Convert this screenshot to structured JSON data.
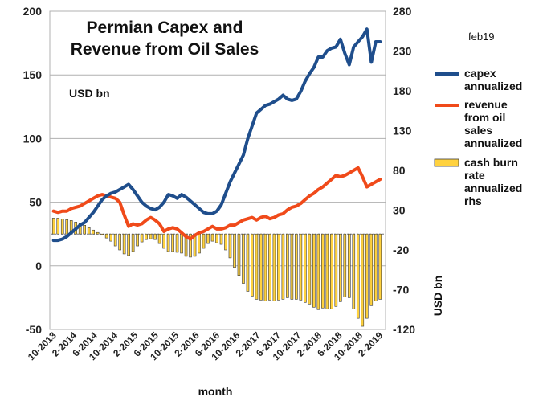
{
  "chart_data": {
    "type": "line",
    "title_line1": "Permian Capex and",
    "title_line2": "Revenue from Oil Sales",
    "unit_label": "USD bn",
    "date_label": "feb19",
    "xlabel": "month",
    "y2label": "USD bn",
    "ylim": [
      -50,
      200
    ],
    "y2lim": [
      -120,
      280
    ],
    "yticks": [
      "200",
      "150",
      "100",
      "50",
      "0",
      "-50"
    ],
    "y2ticks": [
      "280",
      "230",
      "180",
      "130",
      "80",
      "30",
      "-20",
      "-70",
      "-120"
    ],
    "x_tick_labels": [
      "10-2013",
      "2-2014",
      "6-2014",
      "10-2014",
      "2-2015",
      "6-2015",
      "10-2015",
      "2-2016",
      "6-2016",
      "10-2016",
      "2-2017",
      "6-2017",
      "10-2017",
      "2-2018",
      "6-2018",
      "10-2018",
      "2-2019"
    ],
    "colors": {
      "capex": "#1f4e8c",
      "revenue": "#f04a1a",
      "cash_burn": "#ffd23f",
      "cash_burn_edge": "#3a3a3a"
    },
    "legend_position": "right",
    "series": [
      {
        "key": "capex",
        "legend_lines": [
          "capex",
          "annualized"
        ],
        "axis": "left",
        "values": [
          20,
          20,
          21,
          23,
          26,
          29,
          32,
          34,
          38,
          42,
          47,
          52,
          55,
          57,
          58,
          60,
          62,
          64,
          60,
          55,
          50,
          47,
          45,
          44,
          46,
          50,
          56,
          55,
          53,
          56,
          54,
          51,
          48,
          45,
          42,
          41,
          41,
          43,
          48,
          57,
          66,
          73,
          80,
          87,
          100,
          110,
          120,
          123,
          126,
          127,
          129,
          131,
          134,
          131,
          130,
          131,
          137,
          145,
          151,
          156,
          164,
          164,
          169,
          171,
          172,
          178,
          167,
          158,
          172,
          176,
          180,
          186,
          160,
          176,
          176
        ]
      },
      {
        "key": "revenue",
        "legend_lines": [
          "revenue",
          "from oil",
          "sales",
          "annualized"
        ],
        "axis": "left",
        "values": [
          43,
          42,
          43,
          43,
          45,
          46,
          47,
          49,
          51,
          53,
          55,
          56,
          55,
          54,
          53,
          50,
          40,
          31,
          33,
          32,
          33,
          36,
          38,
          36,
          33,
          27,
          29,
          30,
          29,
          26,
          23,
          21,
          24,
          26,
          27,
          29,
          31,
          29,
          29,
          30,
          32,
          32,
          34,
          36,
          37,
          38,
          36,
          38,
          39,
          37,
          38,
          40,
          41,
          44,
          46,
          47,
          49,
          52,
          55,
          57,
          60,
          62,
          65,
          68,
          71,
          70,
          71,
          73,
          75,
          77,
          70,
          62,
          64,
          66,
          68
        ]
      },
      {
        "key": "cash_burn",
        "legend_lines": [
          "cash burn",
          "rate",
          "annualized",
          "rhs"
        ],
        "axis": "right",
        "values": [
          20,
          20,
          19,
          18,
          17,
          15,
          13,
          11,
          8,
          5,
          2,
          -1,
          -5,
          -9,
          -15,
          -20,
          -25,
          -27,
          -22,
          -15,
          -10,
          -7,
          -6,
          -7,
          -12,
          -18,
          -22,
          -22,
          -23,
          -24,
          -28,
          -29,
          -28,
          -24,
          -18,
          -12,
          -9,
          -11,
          -13,
          -20,
          -30,
          -42,
          -52,
          -62,
          -72,
          -78,
          -82,
          -83,
          -84,
          -83,
          -84,
          -83,
          -82,
          -80,
          -82,
          -82,
          -83,
          -86,
          -88,
          -92,
          -95,
          -93,
          -94,
          -94,
          -91,
          -85,
          -79,
          -80,
          -94,
          -106,
          -116,
          -106,
          -90,
          -84,
          -82
        ]
      }
    ]
  }
}
